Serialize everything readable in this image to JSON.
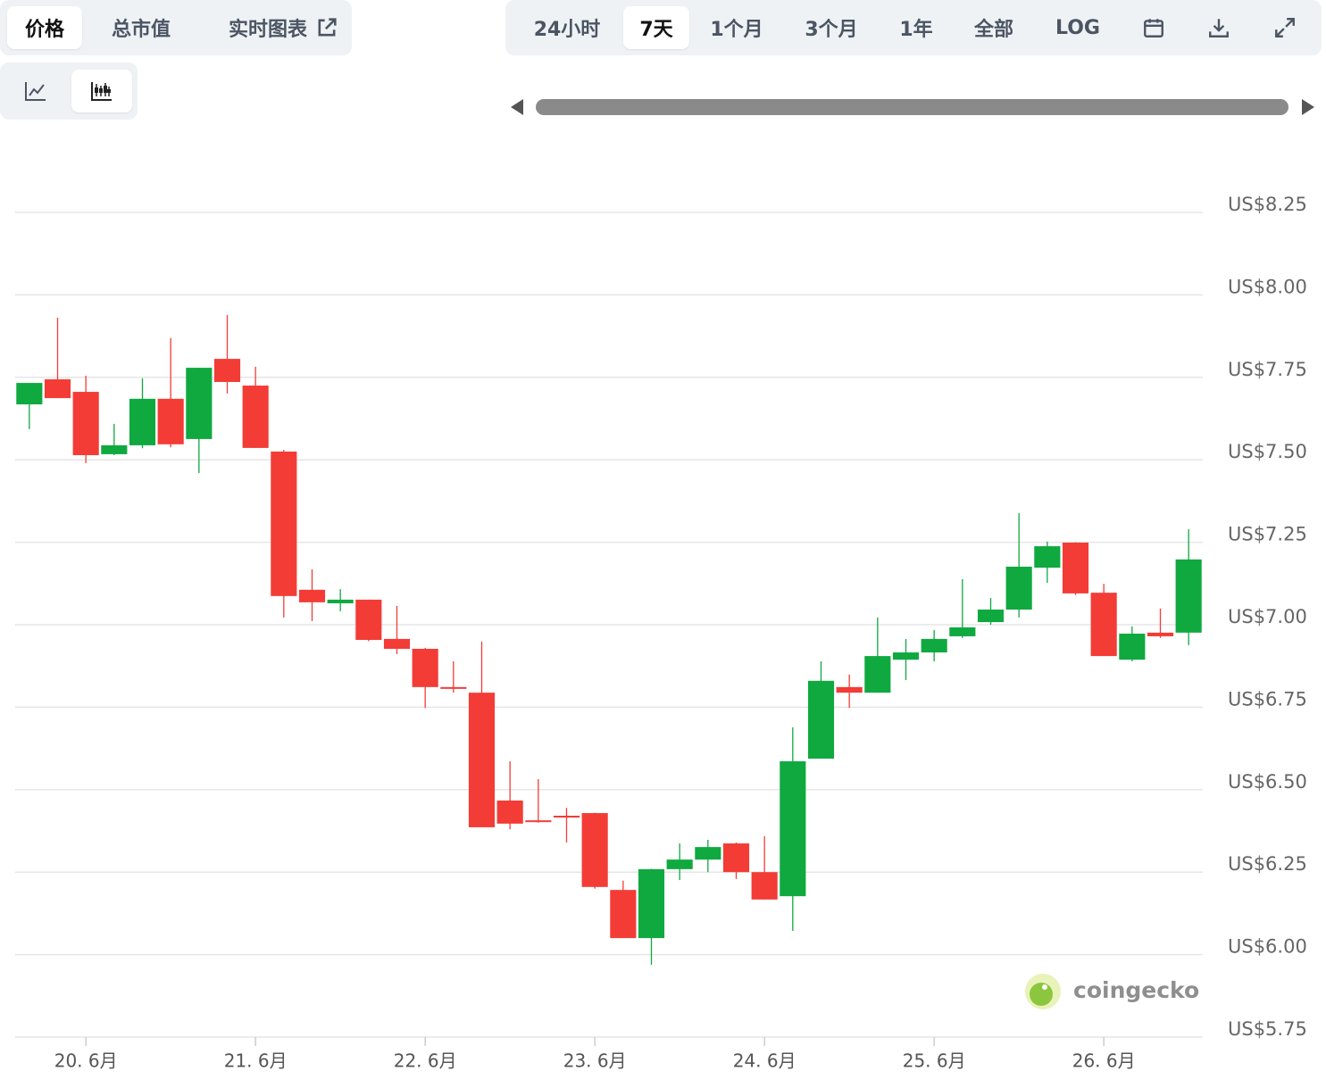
{
  "ui": {
    "tabs": [
      "价格",
      "总市值",
      "实时图表"
    ],
    "ranges": [
      "24小时",
      "7天",
      "1个月",
      "3个月",
      "1年",
      "全部",
      "LOG"
    ],
    "watermark": "coingecko"
  },
  "chart_data": {
    "type": "candlestick",
    "x": [
      0,
      1,
      2,
      3,
      4,
      5,
      6,
      7,
      8,
      9,
      10,
      11,
      12,
      13,
      14,
      15,
      16,
      17,
      18,
      19,
      20,
      21,
      22,
      23,
      24,
      25,
      26,
      27,
      28,
      29,
      30,
      31,
      32,
      33,
      34,
      35,
      36,
      37,
      38,
      39,
      40,
      41
    ],
    "open": [
      7.668,
      7.744,
      7.706,
      7.517,
      7.544,
      7.685,
      7.563,
      7.806,
      7.725,
      7.525,
      7.106,
      7.065,
      7.076,
      6.957,
      6.927,
      6.811,
      6.794,
      6.467,
      6.407,
      6.421,
      6.429,
      6.196,
      6.05,
      6.259,
      6.288,
      6.337,
      6.25,
      6.177,
      6.594,
      6.811,
      6.794,
      6.894,
      6.916,
      6.965,
      7.008,
      7.046,
      7.173,
      7.249,
      7.097,
      6.894,
      6.976,
      6.976
    ],
    "high": [
      7.733,
      7.931,
      7.755,
      7.609,
      7.747,
      7.869,
      7.779,
      7.939,
      7.782,
      7.53,
      7.168,
      7.108,
      7.076,
      7.057,
      6.93,
      6.889,
      6.949,
      6.586,
      6.532,
      6.445,
      6.43,
      6.224,
      6.26,
      6.337,
      6.348,
      6.34,
      6.359,
      6.689,
      6.889,
      6.849,
      7.022,
      6.957,
      6.984,
      7.138,
      7.081,
      7.338,
      7.252,
      7.25,
      7.124,
      6.995,
      7.049,
      7.289
    ],
    "low": [
      7.593,
      7.687,
      7.49,
      7.514,
      7.535,
      7.538,
      7.46,
      7.701,
      7.536,
      7.022,
      7.011,
      7.041,
      6.95,
      6.911,
      6.748,
      6.794,
      6.386,
      6.38,
      6.4,
      6.34,
      6.2,
      6.05,
      5.969,
      6.226,
      6.25,
      6.229,
      6.167,
      6.072,
      6.594,
      6.748,
      6.794,
      6.832,
      6.889,
      6.96,
      7.0,
      7.022,
      7.127,
      7.09,
      6.905,
      6.889,
      6.96,
      6.938
    ],
    "close": [
      7.733,
      7.687,
      7.514,
      7.544,
      7.685,
      7.547,
      7.779,
      7.736,
      7.536,
      7.087,
      7.068,
      7.076,
      6.954,
      6.927,
      6.811,
      6.806,
      6.386,
      6.397,
      6.402,
      6.416,
      6.205,
      6.05,
      6.259,
      6.288,
      6.326,
      6.25,
      6.167,
      6.586,
      6.83,
      6.794,
      6.905,
      6.916,
      6.957,
      6.992,
      7.046,
      7.176,
      7.238,
      7.095,
      6.905,
      6.973,
      6.965,
      7.198
    ],
    "up_color": "#0fa940",
    "down_color": "#f33c36",
    "xlim": [
      -0.5,
      41.5
    ],
    "xticks": [
      {
        "value": 2,
        "label": "20. 6月"
      },
      {
        "value": 8,
        "label": "21. 6月"
      },
      {
        "value": 14,
        "label": "22. 6月"
      },
      {
        "value": 20,
        "label": "23. 6月"
      },
      {
        "value": 26,
        "label": "24. 6月"
      },
      {
        "value": 32,
        "label": "25. 6月"
      },
      {
        "value": 38,
        "label": "26. 6月"
      }
    ],
    "ylim": [
      5.75,
      8.25
    ],
    "yticks": [
      {
        "value": 5.75,
        "label": "US$5.75"
      },
      {
        "value": 6,
        "label": "US$6.00"
      },
      {
        "value": 6.25,
        "label": "US$6.25"
      },
      {
        "value": 6.5,
        "label": "US$6.50"
      },
      {
        "value": 6.75,
        "label": "US$6.75"
      },
      {
        "value": 7,
        "label": "US$7.00"
      },
      {
        "value": 7.25,
        "label": "US$7.25"
      },
      {
        "value": 7.5,
        "label": "US$7.50"
      },
      {
        "value": 7.75,
        "label": "US$7.75"
      },
      {
        "value": 8,
        "label": "US$8.00"
      },
      {
        "value": 8.25,
        "label": "US$8.25"
      }
    ],
    "grid": true
  }
}
